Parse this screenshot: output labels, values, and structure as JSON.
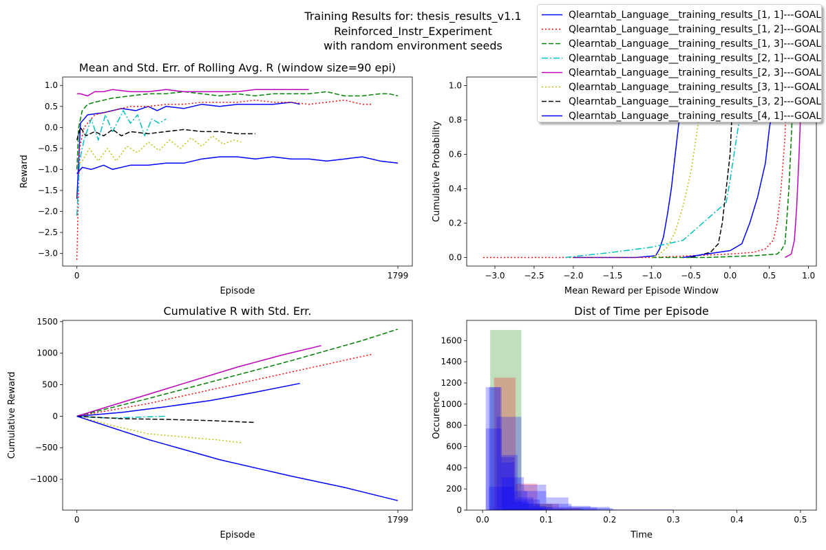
{
  "figure": {
    "suptitle_lines": [
      "Training Results for: thesis_results_v1.1",
      "Reinforced_Instr_Experiment",
      "with random environment seeds"
    ]
  },
  "legend": {
    "entries": [
      {
        "label": "Qlearntab_Language__training_results_[1, 1]---GOAL",
        "color": "#0000ff",
        "dash": "solid"
      },
      {
        "label": "Qlearntab_Language__training_results_[1, 2]---GOAL",
        "color": "#ff0000",
        "dash": "dotted"
      },
      {
        "label": "Qlearntab_Language__training_results_[1, 3]---GOAL",
        "color": "#008000",
        "dash": "dashed"
      },
      {
        "label": "Qlearntab_Language__training_results_[2, 1]---GOAL",
        "color": "#00bfbf",
        "dash": "dashdot"
      },
      {
        "label": "Qlearntab_Language__training_results_[2, 3]---GOAL",
        "color": "#bf00bf",
        "dash": "solid"
      },
      {
        "label": "Qlearntab_Language__training_results_[3, 1]---GOAL",
        "color": "#bfbf00",
        "dash": "dotted"
      },
      {
        "label": "Qlearntab_Language__training_results_[3, 2]---GOAL",
        "color": "#000000",
        "dash": "dashed"
      },
      {
        "label": "Qlearntab_Language__training_results_[4, 1]---GOAL",
        "color": "#0000ff",
        "dash": "solid"
      }
    ]
  },
  "chart_data": [
    {
      "type": "line",
      "title": "Mean and Std. Err. of Rolling Avg. R (window size=90 epi)",
      "xlabel": "Episode",
      "ylabel": "Reward",
      "xlim": [
        -80,
        1880
      ],
      "ylim": [
        -3.3,
        1.2
      ],
      "x_ticks": [
        0,
        1799
      ],
      "y_ticks": [
        -3.0,
        -2.5,
        -2.0,
        -1.5,
        -1.0,
        -0.5,
        0.0,
        0.5,
        1.0
      ],
      "series": [
        {
          "legend_index": 0,
          "x": [
            0,
            20,
            60,
            150,
            250,
            330,
            400,
            450,
            500,
            600,
            700,
            800,
            900,
            1000,
            1100,
            1200,
            1250
          ],
          "y": [
            -1.7,
            0.1,
            0.3,
            0.35,
            0.45,
            0.4,
            0.5,
            0.4,
            0.5,
            0.45,
            0.55,
            0.5,
            0.55,
            0.55,
            0.55,
            0.6,
            0.55
          ]
        },
        {
          "legend_index": 1,
          "x": [
            0,
            5,
            15,
            40,
            100,
            200,
            300,
            400,
            500,
            600,
            700,
            800,
            900,
            1000,
            1100,
            1200,
            1300,
            1400,
            1500,
            1600,
            1650
          ],
          "y": [
            -3.15,
            -2.2,
            -0.5,
            0.0,
            0.3,
            0.4,
            0.5,
            0.5,
            0.55,
            0.55,
            0.6,
            0.6,
            0.6,
            0.65,
            0.6,
            0.6,
            0.55,
            0.6,
            0.65,
            0.55,
            0.55
          ]
        },
        {
          "legend_index": 2,
          "x": [
            0,
            10,
            30,
            60,
            100,
            200,
            300,
            400,
            500,
            600,
            700,
            800,
            900,
            1000,
            1100,
            1200,
            1300,
            1400,
            1500,
            1600,
            1700,
            1750,
            1800
          ],
          "y": [
            -1.0,
            0.0,
            0.4,
            0.55,
            0.6,
            0.7,
            0.75,
            0.8,
            0.8,
            0.85,
            0.8,
            0.75,
            0.8,
            0.75,
            0.8,
            0.8,
            0.8,
            0.85,
            0.75,
            0.75,
            0.8,
            0.8,
            0.75
          ]
        },
        {
          "legend_index": 3,
          "x": [
            0,
            15,
            40,
            80,
            120,
            160,
            200,
            260,
            300,
            340,
            380,
            420,
            460,
            500
          ],
          "y": [
            -2.1,
            -0.8,
            -0.3,
            0.2,
            -0.3,
            0.3,
            -0.1,
            0.4,
            0.1,
            0.3,
            -0.2,
            0.2,
            0.1,
            0.2
          ]
        },
        {
          "legend_index": 4,
          "x": [
            0,
            20,
            60,
            100,
            150,
            200,
            300,
            400,
            500,
            600,
            700,
            800,
            900,
            1000,
            1100,
            1200,
            1300
          ],
          "y": [
            0.8,
            0.8,
            0.75,
            0.85,
            0.85,
            0.9,
            0.85,
            0.85,
            0.9,
            0.85,
            0.85,
            0.85,
            0.85,
            0.9,
            0.9,
            0.9,
            0.9
          ]
        },
        {
          "legend_index": 5,
          "x": [
            0,
            30,
            70,
            120,
            170,
            220,
            280,
            340,
            400,
            460,
            520,
            580,
            640,
            700,
            760,
            820,
            880,
            920
          ],
          "y": [
            -0.9,
            -0.8,
            -0.5,
            -0.8,
            -0.5,
            -0.8,
            -0.45,
            -0.6,
            -0.35,
            -0.55,
            -0.3,
            -0.5,
            -0.25,
            -0.45,
            -0.2,
            -0.4,
            -0.3,
            -0.35
          ]
        },
        {
          "legend_index": 6,
          "x": [
            0,
            20,
            50,
            100,
            150,
            200,
            250,
            300,
            400,
            500,
            600,
            700,
            800,
            900,
            950,
            1000
          ],
          "y": [
            -0.3,
            0.0,
            -0.2,
            -0.1,
            -0.2,
            -0.05,
            -0.2,
            -0.1,
            -0.15,
            -0.1,
            -0.05,
            -0.1,
            -0.1,
            -0.15,
            -0.15,
            -0.15
          ]
        },
        {
          "legend_index": 7,
          "x": [
            0,
            30,
            80,
            150,
            200,
            300,
            400,
            500,
            600,
            700,
            800,
            900,
            1000,
            1100,
            1200,
            1300,
            1400,
            1500,
            1600,
            1700,
            1799
          ],
          "y": [
            -1.1,
            -0.95,
            -1.0,
            -0.9,
            -1.0,
            -0.9,
            -0.9,
            -0.85,
            -0.85,
            -0.75,
            -0.7,
            -0.7,
            -0.75,
            -0.7,
            -0.75,
            -0.75,
            -0.8,
            -0.75,
            -0.7,
            -0.8,
            -0.85
          ]
        }
      ]
    },
    {
      "type": "line",
      "title": "",
      "xlabel": "Mean Reward per Episode Window",
      "ylabel": "Cumulative Probability",
      "xlim": [
        -3.36,
        1.1
      ],
      "ylim": [
        -0.05,
        1.05
      ],
      "x_ticks": [
        -3.0,
        -2.5,
        -2.0,
        -1.5,
        -1.0,
        -0.5,
        0.0,
        0.5,
        1.0
      ],
      "y_ticks": [
        0.0,
        0.2,
        0.4,
        0.6,
        0.8,
        1.0
      ],
      "series": [
        {
          "legend_index": 0,
          "x": [
            -2.0,
            -1.2,
            -0.95,
            -0.9,
            -0.85,
            -0.8,
            -0.75,
            -0.7,
            -0.65,
            -0.6,
            -0.55
          ],
          "y": [
            0.0,
            0.0,
            0.01,
            0.05,
            0.12,
            0.25,
            0.4,
            0.6,
            0.8,
            0.95,
            1.0
          ]
        },
        {
          "legend_index": 1,
          "x": [
            -3.15,
            -1.0,
            0.0,
            0.3,
            0.45,
            0.55,
            0.6,
            0.65,
            0.7,
            0.72
          ],
          "y": [
            0.0,
            0.0,
            0.02,
            0.03,
            0.05,
            0.1,
            0.2,
            0.4,
            0.7,
            1.0
          ]
        },
        {
          "legend_index": 2,
          "x": [
            -1.0,
            -0.3,
            0.3,
            0.6,
            0.65,
            0.7,
            0.72,
            0.75,
            0.78,
            0.8,
            0.82
          ],
          "y": [
            0.0,
            0.0,
            0.01,
            0.02,
            0.04,
            0.08,
            0.2,
            0.4,
            0.7,
            0.9,
            1.0
          ]
        },
        {
          "legend_index": 3,
          "x": [
            -2.1,
            -1.5,
            -1.0,
            -0.6,
            -0.4,
            -0.2,
            -0.05,
            0.0,
            0.05,
            0.1,
            0.15,
            0.2
          ],
          "y": [
            0.0,
            0.03,
            0.06,
            0.1,
            0.18,
            0.26,
            0.32,
            0.45,
            0.6,
            0.75,
            0.9,
            1.0
          ]
        },
        {
          "legend_index": 4,
          "x": [
            0.7,
            0.78,
            0.82,
            0.85,
            0.88,
            0.9,
            0.92
          ],
          "y": [
            0.0,
            0.02,
            0.1,
            0.3,
            0.6,
            0.85,
            1.0
          ]
        },
        {
          "legend_index": 5,
          "x": [
            -1.0,
            -0.9,
            -0.8,
            -0.7,
            -0.6,
            -0.5,
            -0.45,
            -0.4,
            -0.35,
            -0.3
          ],
          "y": [
            0.0,
            0.02,
            0.06,
            0.15,
            0.3,
            0.5,
            0.65,
            0.8,
            0.92,
            1.0
          ]
        },
        {
          "legend_index": 6,
          "x": [
            -0.5,
            -0.25,
            -0.15,
            -0.1,
            -0.05,
            0.0,
            0.02,
            0.05
          ],
          "y": [
            0.0,
            0.03,
            0.08,
            0.2,
            0.4,
            0.6,
            0.8,
            1.0
          ]
        },
        {
          "legend_index": 7,
          "x": [
            -0.6,
            -0.3,
            0.0,
            0.15,
            0.25,
            0.35,
            0.45,
            0.5,
            0.55,
            0.6
          ],
          "y": [
            0.0,
            0.02,
            0.04,
            0.08,
            0.2,
            0.35,
            0.55,
            0.75,
            0.9,
            1.0
          ]
        }
      ]
    },
    {
      "type": "line",
      "title": "Cumulative R with Std. Err.",
      "xlabel": "Episode",
      "ylabel": "Cumulative Reward",
      "xlim": [
        -80,
        1880
      ],
      "ylim": [
        -1490,
        1520
      ],
      "x_ticks": [
        0,
        1799
      ],
      "y_ticks": [
        -1000,
        -500,
        0,
        500,
        1000,
        1500
      ],
      "series": [
        {
          "legend_index": 0,
          "x": [
            0,
            250,
            500,
            750,
            1000,
            1250
          ],
          "y": [
            0,
            60,
            150,
            250,
            380,
            520
          ]
        },
        {
          "legend_index": 1,
          "x": [
            0,
            400,
            800,
            1200,
            1650
          ],
          "y": [
            0,
            200,
            450,
            700,
            980
          ]
        },
        {
          "legend_index": 2,
          "x": [
            0,
            400,
            800,
            1200,
            1600,
            1799
          ],
          "y": [
            0,
            280,
            580,
            880,
            1200,
            1380
          ]
        },
        {
          "legend_index": 3,
          "x": [
            0,
            100,
            200,
            300,
            400,
            500
          ],
          "y": [
            0,
            -20,
            -30,
            -20,
            -10,
            0
          ]
        },
        {
          "legend_index": 4,
          "x": [
            0,
            300,
            600,
            900,
            1150,
            1370
          ],
          "y": [
            0,
            260,
            520,
            780,
            970,
            1120
          ]
        },
        {
          "legend_index": 5,
          "x": [
            0,
            200,
            400,
            600,
            800,
            920
          ],
          "y": [
            0,
            -150,
            -280,
            -330,
            -380,
            -420
          ]
        },
        {
          "legend_index": 6,
          "x": [
            0,
            250,
            500,
            750,
            1000
          ],
          "y": [
            0,
            -40,
            -50,
            -70,
            -100
          ]
        },
        {
          "legend_index": 7,
          "x": [
            0,
            400,
            800,
            1200,
            1500,
            1799
          ],
          "y": [
            0,
            -370,
            -690,
            -950,
            -1130,
            -1340
          ]
        }
      ]
    },
    {
      "type": "bar",
      "subtype": "histogram",
      "title": "Dist of Time per Episode",
      "xlabel": "Time",
      "ylabel": "Occurence",
      "xlim": [
        -0.025,
        0.525
      ],
      "ylim": [
        0,
        1790
      ],
      "x_ticks": [
        0.0,
        0.1,
        0.2,
        0.3,
        0.4,
        0.5
      ],
      "y_ticks": [
        0,
        200,
        400,
        600,
        800,
        1000,
        1200,
        1400,
        1600
      ],
      "bar_opacity": 0.25,
      "series": [
        {
          "color": "#008000",
          "bins": [
            [
              0.012,
              0.061,
              1700
            ],
            [
              0.061,
              0.11,
              60
            ],
            [
              0.11,
              0.16,
              15
            ],
            [
              0.16,
              0.21,
              5
            ]
          ]
        },
        {
          "color": "#ff0000",
          "bins": [
            [
              0.018,
              0.052,
              1250
            ],
            [
              0.052,
              0.086,
              250
            ],
            [
              0.086,
              0.12,
              60
            ],
            [
              0.12,
              0.154,
              20
            ],
            [
              0.154,
              0.19,
              5
            ]
          ]
        },
        {
          "color": "#0000ff",
          "bins": [
            [
              0.01,
              0.03,
              1160
            ],
            [
              0.03,
              0.05,
              450
            ],
            [
              0.05,
              0.07,
              180
            ],
            [
              0.07,
              0.09,
              60
            ],
            [
              0.09,
              0.11,
              25
            ],
            [
              0.11,
              0.13,
              10
            ]
          ]
        },
        {
          "color": "#0000ff",
          "bins": [
            [
              0.005,
              0.028,
              1160
            ],
            [
              0.028,
              0.05,
              500
            ],
            [
              0.05,
              0.073,
              80
            ],
            [
              0.073,
              0.095,
              20
            ]
          ]
        },
        {
          "color": "#0000ff",
          "bins": [
            [
              0.022,
              0.061,
              880
            ],
            [
              0.061,
              0.1,
              240
            ],
            [
              0.1,
              0.14,
              60
            ],
            [
              0.14,
              0.18,
              25
            ]
          ]
        },
        {
          "color": "#0000ff",
          "bins": [
            [
              0.005,
              0.03,
              770
            ],
            [
              0.03,
              0.055,
              520
            ],
            [
              0.055,
              0.08,
              120
            ],
            [
              0.08,
              0.1,
              40
            ]
          ]
        },
        {
          "color": "#0000ff",
          "bins": [
            [
              0.03,
              0.065,
              310
            ],
            [
              0.065,
              0.1,
              180
            ],
            [
              0.1,
              0.135,
              120
            ],
            [
              0.135,
              0.17,
              40
            ],
            [
              0.17,
              0.205,
              20
            ]
          ]
        },
        {
          "color": "#0000ff",
          "bins": [
            [
              0.01,
              0.05,
              220
            ],
            [
              0.05,
              0.09,
              100
            ],
            [
              0.09,
              0.2,
              30
            ],
            [
              0.2,
              0.3,
              8
            ],
            [
              0.3,
              0.4,
              3
            ]
          ]
        }
      ]
    }
  ]
}
